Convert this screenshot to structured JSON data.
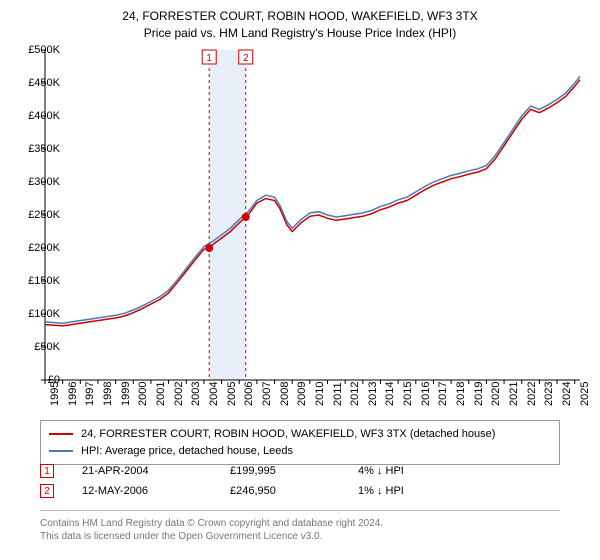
{
  "title_line1": "24, FORRESTER COURT, ROBIN HOOD, WAKEFIELD, WF3 3TX",
  "title_line2": "Price paid vs. HM Land Registry's House Price Index (HPI)",
  "chart": {
    "type": "line",
    "background_color": "#ffffff",
    "highlight_band_color": "#e8eef7",
    "axis_color": "#000000",
    "marker_color": "#cc0000",
    "ylim": [
      0,
      500000
    ],
    "ytick_step": 50000,
    "y_ticks": [
      "£0",
      "£50K",
      "£100K",
      "£150K",
      "£200K",
      "£250K",
      "£300K",
      "£350K",
      "£400K",
      "£450K",
      "£500K"
    ],
    "x_years": [
      1995,
      1996,
      1997,
      1998,
      1999,
      2000,
      2001,
      2002,
      2003,
      2004,
      2005,
      2006,
      2007,
      2008,
      2009,
      2010,
      2011,
      2012,
      2013,
      2014,
      2015,
      2016,
      2017,
      2018,
      2019,
      2020,
      2021,
      2022,
      2023,
      2024,
      2025
    ],
    "highlight_band": {
      "start_year": 2004.3,
      "end_year": 2006.37
    },
    "vlines": [
      2004.3,
      2006.37
    ],
    "markers": [
      {
        "label": "1",
        "year": 2004.3,
        "value": 199995
      },
      {
        "label": "2",
        "year": 2006.37,
        "value": 246950
      }
    ],
    "series": [
      {
        "name": "property",
        "color": "#cc0000",
        "line_width": 1.5,
        "points": [
          [
            1995,
            84000
          ],
          [
            1995.5,
            83000
          ],
          [
            1996,
            82000
          ],
          [
            1996.5,
            84000
          ],
          [
            1997,
            86000
          ],
          [
            1997.5,
            88000
          ],
          [
            1998,
            90000
          ],
          [
            1998.5,
            92000
          ],
          [
            1999,
            94000
          ],
          [
            1999.5,
            97000
          ],
          [
            2000,
            102000
          ],
          [
            2000.5,
            108000
          ],
          [
            2001,
            115000
          ],
          [
            2001.5,
            122000
          ],
          [
            2002,
            132000
          ],
          [
            2002.5,
            148000
          ],
          [
            2003,
            165000
          ],
          [
            2003.5,
            182000
          ],
          [
            2004,
            198000
          ],
          [
            2004.3,
            199995
          ],
          [
            2004.5,
            205000
          ],
          [
            2005,
            215000
          ],
          [
            2005.5,
            225000
          ],
          [
            2006,
            238000
          ],
          [
            2006.37,
            246950
          ],
          [
            2006.5,
            250000
          ],
          [
            2007,
            268000
          ],
          [
            2007.5,
            275000
          ],
          [
            2008,
            272000
          ],
          [
            2008.3,
            260000
          ],
          [
            2008.7,
            235000
          ],
          [
            2009,
            225000
          ],
          [
            2009.5,
            238000
          ],
          [
            2010,
            248000
          ],
          [
            2010.5,
            250000
          ],
          [
            2011,
            245000
          ],
          [
            2011.5,
            242000
          ],
          [
            2012,
            244000
          ],
          [
            2012.5,
            246000
          ],
          [
            2013,
            248000
          ],
          [
            2013.5,
            252000
          ],
          [
            2014,
            258000
          ],
          [
            2014.5,
            262000
          ],
          [
            2015,
            268000
          ],
          [
            2015.5,
            272000
          ],
          [
            2016,
            280000
          ],
          [
            2016.5,
            288000
          ],
          [
            2017,
            295000
          ],
          [
            2017.5,
            300000
          ],
          [
            2018,
            305000
          ],
          [
            2018.5,
            308000
          ],
          [
            2019,
            312000
          ],
          [
            2019.5,
            315000
          ],
          [
            2020,
            320000
          ],
          [
            2020.5,
            335000
          ],
          [
            2021,
            355000
          ],
          [
            2021.5,
            375000
          ],
          [
            2022,
            395000
          ],
          [
            2022.5,
            410000
          ],
          [
            2023,
            405000
          ],
          [
            2023.5,
            412000
          ],
          [
            2024,
            420000
          ],
          [
            2024.5,
            430000
          ],
          [
            2025,
            445000
          ],
          [
            2025.3,
            455000
          ]
        ]
      },
      {
        "name": "hpi",
        "color": "#4a7ab8",
        "line_width": 1.5,
        "points": [
          [
            1995,
            88000
          ],
          [
            1995.5,
            87000
          ],
          [
            1996,
            86000
          ],
          [
            1996.5,
            88000
          ],
          [
            1997,
            90000
          ],
          [
            1997.5,
            92000
          ],
          [
            1998,
            94000
          ],
          [
            1998.5,
            96000
          ],
          [
            1999,
            98000
          ],
          [
            1999.5,
            101000
          ],
          [
            2000,
            106000
          ],
          [
            2000.5,
            112000
          ],
          [
            2001,
            119000
          ],
          [
            2001.5,
            126000
          ],
          [
            2002,
            136000
          ],
          [
            2002.5,
            152000
          ],
          [
            2003,
            169000
          ],
          [
            2003.5,
            186000
          ],
          [
            2004,
            202000
          ],
          [
            2004.5,
            210000
          ],
          [
            2005,
            220000
          ],
          [
            2005.5,
            230000
          ],
          [
            2006,
            243000
          ],
          [
            2006.5,
            255000
          ],
          [
            2007,
            272000
          ],
          [
            2007.5,
            280000
          ],
          [
            2008,
            277000
          ],
          [
            2008.3,
            265000
          ],
          [
            2008.7,
            240000
          ],
          [
            2009,
            230000
          ],
          [
            2009.5,
            243000
          ],
          [
            2010,
            253000
          ],
          [
            2010.5,
            255000
          ],
          [
            2011,
            250000
          ],
          [
            2011.5,
            247000
          ],
          [
            2012,
            249000
          ],
          [
            2012.5,
            251000
          ],
          [
            2013,
            253000
          ],
          [
            2013.5,
            257000
          ],
          [
            2014,
            263000
          ],
          [
            2014.5,
            267000
          ],
          [
            2015,
            273000
          ],
          [
            2015.5,
            277000
          ],
          [
            2016,
            285000
          ],
          [
            2016.5,
            293000
          ],
          [
            2017,
            300000
          ],
          [
            2017.5,
            305000
          ],
          [
            2018,
            310000
          ],
          [
            2018.5,
            313000
          ],
          [
            2019,
            317000
          ],
          [
            2019.5,
            320000
          ],
          [
            2020,
            325000
          ],
          [
            2020.5,
            340000
          ],
          [
            2021,
            360000
          ],
          [
            2021.5,
            380000
          ],
          [
            2022,
            400000
          ],
          [
            2022.5,
            415000
          ],
          [
            2023,
            410000
          ],
          [
            2023.5,
            417000
          ],
          [
            2024,
            425000
          ],
          [
            2024.5,
            435000
          ],
          [
            2025,
            450000
          ],
          [
            2025.3,
            460000
          ]
        ]
      }
    ],
    "label_fontsize": 11,
    "title_fontsize": 12
  },
  "legend": {
    "items": [
      {
        "color": "#cc0000",
        "label": "24, FORRESTER COURT, ROBIN HOOD, WAKEFIELD, WF3 3TX (detached house)"
      },
      {
        "color": "#4a7ab8",
        "label": "HPI: Average price, detached house, Leeds"
      }
    ]
  },
  "transactions": [
    {
      "marker": "1",
      "date": "21-APR-2004",
      "price": "£199,995",
      "delta": "4% ↓ HPI"
    },
    {
      "marker": "2",
      "date": "12-MAY-2006",
      "price": "£246,950",
      "delta": "1% ↓ HPI"
    }
  ],
  "footer_line1": "Contains HM Land Registry data © Crown copyright and database right 2024.",
  "footer_line2": "This data is licensed under the Open Government Licence v3.0."
}
